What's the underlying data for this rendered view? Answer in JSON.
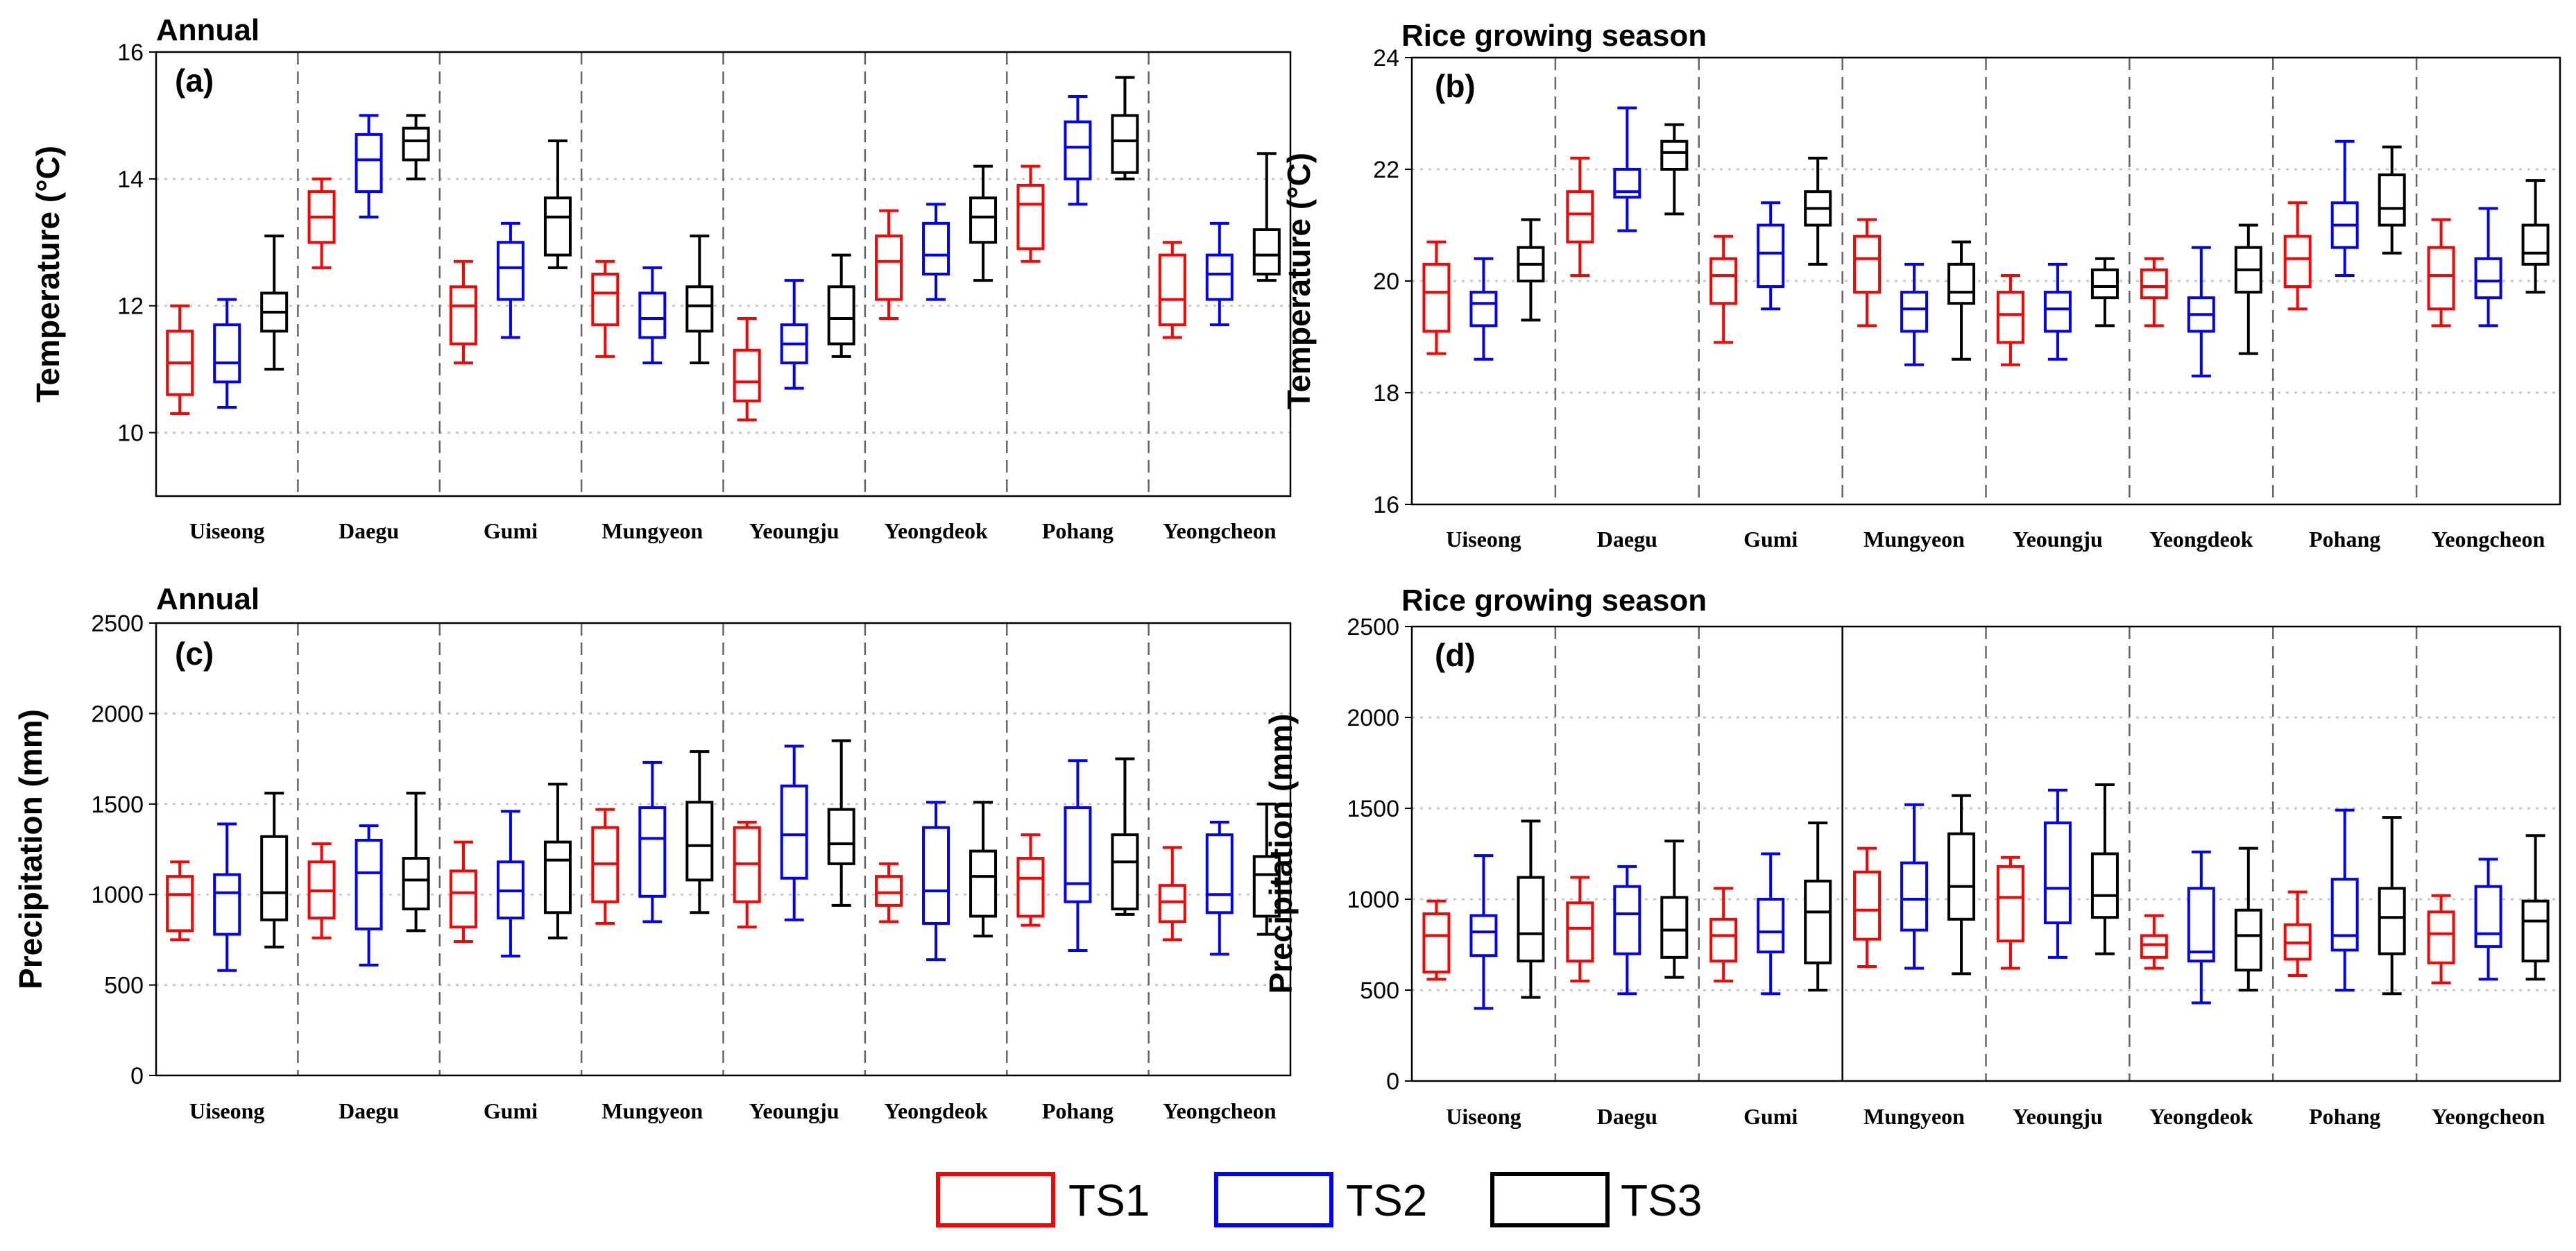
{
  "legend": [
    {
      "label": "TS1",
      "color": "#ff0000"
    },
    {
      "label": "TS2",
      "color": "#0000ff"
    },
    {
      "label": "TS3",
      "color": "#000000"
    }
  ],
  "chart_data": [
    {
      "type": "box",
      "panel": "(a)",
      "title": "Annual",
      "ylabel": "Temperature (°C)",
      "ylim": [
        9,
        16
      ],
      "yticks": [
        10,
        12,
        14,
        16
      ],
      "categories": [
        "Uiseong",
        "Daegu",
        "Gumi",
        "Mungyeon",
        "Yeoungju",
        "Yeongdeok",
        "Pohang",
        "Yeongcheon"
      ],
      "series": [
        {
          "name": "TS1",
          "boxes": [
            [
              10.3,
              10.6,
              11.1,
              11.6,
              12.0
            ],
            [
              12.6,
              13.0,
              13.4,
              13.8,
              14.0
            ],
            [
              11.1,
              11.4,
              12.0,
              12.3,
              12.7
            ],
            [
              11.2,
              11.7,
              12.2,
              12.5,
              12.7
            ],
            [
              10.2,
              10.5,
              10.8,
              11.3,
              11.8
            ],
            [
              11.8,
              12.1,
              12.7,
              13.1,
              13.5
            ],
            [
              12.7,
              12.9,
              13.6,
              13.9,
              14.2
            ],
            [
              11.5,
              11.7,
              12.1,
              12.8,
              13.0
            ]
          ]
        },
        {
          "name": "TS2",
          "boxes": [
            [
              10.4,
              10.8,
              11.1,
              11.7,
              12.1
            ],
            [
              13.4,
              13.8,
              14.3,
              14.7,
              15.0
            ],
            [
              11.5,
              12.1,
              12.6,
              13.0,
              13.3
            ],
            [
              11.1,
              11.5,
              11.8,
              12.2,
              12.6
            ],
            [
              10.7,
              11.1,
              11.4,
              11.7,
              12.4
            ],
            [
              12.1,
              12.5,
              12.8,
              13.3,
              13.6
            ],
            [
              13.6,
              14.0,
              14.5,
              14.9,
              15.3
            ],
            [
              11.7,
              12.1,
              12.5,
              12.8,
              13.3
            ]
          ]
        },
        {
          "name": "TS3",
          "boxes": [
            [
              11.0,
              11.6,
              11.9,
              12.2,
              13.1
            ],
            [
              14.0,
              14.3,
              14.6,
              14.8,
              15.0
            ],
            [
              12.6,
              12.8,
              13.4,
              13.7,
              14.6
            ],
            [
              11.1,
              11.6,
              12.0,
              12.3,
              13.1
            ],
            [
              11.2,
              11.4,
              11.8,
              12.3,
              12.8
            ],
            [
              12.4,
              13.0,
              13.4,
              13.7,
              14.2
            ],
            [
              14.0,
              14.1,
              14.6,
              15.0,
              15.6
            ],
            [
              12.4,
              12.5,
              12.8,
              13.2,
              14.4
            ]
          ]
        }
      ]
    },
    {
      "type": "box",
      "panel": "(b)",
      "title": "Rice growing season",
      "ylabel": "Temperature (°C)",
      "ylim": [
        16,
        24
      ],
      "yticks": [
        16,
        18,
        20,
        22,
        24
      ],
      "categories": [
        "Uiseong",
        "Daegu",
        "Gumi",
        "Mungyeon",
        "Yeoungju",
        "Yeongdeok",
        "Pohang",
        "Yeongcheon"
      ],
      "series": [
        {
          "name": "TS1",
          "boxes": [
            [
              18.7,
              19.1,
              19.8,
              20.3,
              20.7
            ],
            [
              20.1,
              20.7,
              21.2,
              21.6,
              22.2
            ],
            [
              18.9,
              19.6,
              20.1,
              20.4,
              20.8
            ],
            [
              19.2,
              19.8,
              20.4,
              20.8,
              21.1
            ],
            [
              18.5,
              18.9,
              19.4,
              19.8,
              20.1
            ],
            [
              19.2,
              19.7,
              19.9,
              20.2,
              20.4
            ],
            [
              19.5,
              19.9,
              20.4,
              20.8,
              21.4
            ],
            [
              19.2,
              19.5,
              20.1,
              20.6,
              21.1
            ]
          ]
        },
        {
          "name": "TS2",
          "boxes": [
            [
              18.6,
              19.2,
              19.6,
              19.8,
              20.4
            ],
            [
              20.9,
              21.5,
              21.6,
              22.0,
              23.1
            ],
            [
              19.5,
              19.9,
              20.5,
              21.0,
              21.4
            ],
            [
              18.5,
              19.1,
              19.5,
              19.8,
              20.3
            ],
            [
              18.6,
              19.1,
              19.5,
              19.8,
              20.3
            ],
            [
              18.3,
              19.1,
              19.4,
              19.7,
              20.6
            ],
            [
              20.1,
              20.6,
              21.0,
              21.4,
              22.5
            ],
            [
              19.2,
              19.7,
              20.0,
              20.4,
              21.3
            ]
          ]
        },
        {
          "name": "TS3",
          "boxes": [
            [
              19.3,
              20.0,
              20.3,
              20.6,
              21.1
            ],
            [
              21.2,
              22.0,
              22.3,
              22.5,
              22.8
            ],
            [
              20.3,
              21.0,
              21.3,
              21.6,
              22.2
            ],
            [
              18.6,
              19.6,
              19.8,
              20.3,
              20.7
            ],
            [
              19.2,
              19.7,
              19.9,
              20.2,
              20.4
            ],
            [
              18.7,
              19.8,
              20.2,
              20.6,
              21.0
            ],
            [
              20.5,
              21.0,
              21.3,
              21.9,
              22.4
            ],
            [
              19.8,
              20.3,
              20.5,
              21.0,
              21.8
            ]
          ]
        }
      ]
    },
    {
      "type": "box",
      "panel": "(c)",
      "title": "Annual",
      "ylabel": "Precipitation (mm)",
      "ylim": [
        0,
        2500
      ],
      "yticks": [
        0,
        500,
        1000,
        1500,
        2000,
        2500
      ],
      "categories": [
        "Uiseong",
        "Daegu",
        "Gumi",
        "Mungyeon",
        "Yeoungju",
        "Yeongdeok",
        "Pohang",
        "Yeongcheon"
      ],
      "series": [
        {
          "name": "TS1",
          "boxes": [
            [
              750,
              800,
              1000,
              1100,
              1180
            ],
            [
              760,
              870,
              1020,
              1180,
              1280
            ],
            [
              740,
              820,
              1010,
              1130,
              1290
            ],
            [
              840,
              960,
              1170,
              1370,
              1470
            ],
            [
              820,
              960,
              1170,
              1370,
              1400
            ],
            [
              850,
              940,
              1010,
              1100,
              1170
            ],
            [
              830,
              880,
              1090,
              1200,
              1330
            ],
            [
              750,
              850,
              960,
              1050,
              1260
            ]
          ]
        },
        {
          "name": "TS2",
          "boxes": [
            [
              580,
              780,
              1010,
              1110,
              1390
            ],
            [
              610,
              810,
              1120,
              1300,
              1380
            ],
            [
              660,
              870,
              1020,
              1180,
              1460
            ],
            [
              850,
              990,
              1310,
              1480,
              1730
            ],
            [
              860,
              1090,
              1330,
              1600,
              1820
            ],
            [
              640,
              840,
              1020,
              1370,
              1510
            ],
            [
              690,
              960,
              1060,
              1480,
              1740
            ],
            [
              670,
              900,
              1000,
              1330,
              1400
            ]
          ]
        },
        {
          "name": "TS3",
          "boxes": [
            [
              710,
              860,
              1010,
              1320,
              1560
            ],
            [
              800,
              920,
              1080,
              1200,
              1560
            ],
            [
              760,
              900,
              1190,
              1290,
              1610
            ],
            [
              900,
              1080,
              1270,
              1510,
              1790
            ],
            [
              940,
              1170,
              1280,
              1470,
              1850
            ],
            [
              770,
              880,
              1100,
              1240,
              1510
            ],
            [
              890,
              920,
              1180,
              1330,
              1750
            ],
            [
              780,
              880,
              1110,
              1210,
              1500
            ]
          ]
        }
      ]
    },
    {
      "type": "box",
      "panel": "(d)",
      "title": "Rice growing season",
      "ylabel": "Precipitation (mm)",
      "ylim": [
        0,
        2500
      ],
      "yticks": [
        0,
        500,
        1000,
        1500,
        2000,
        2500
      ],
      "categories": [
        "Uiseong",
        "Daegu",
        "Gumi",
        "Mungyeon",
        "Yeoungju",
        "Yeongdeok",
        "Pohang",
        "Yeongcheon"
      ],
      "series": [
        {
          "name": "TS1",
          "boxes": [
            [
              560,
              600,
              800,
              920,
              990
            ],
            [
              550,
              660,
              840,
              980,
              1120
            ],
            [
              550,
              660,
              800,
              890,
              1060
            ],
            [
              630,
              780,
              940,
              1150,
              1280
            ],
            [
              620,
              770,
              1010,
              1180,
              1230
            ],
            [
              620,
              680,
              750,
              800,
              910
            ],
            [
              580,
              670,
              760,
              860,
              1040
            ],
            [
              540,
              650,
              810,
              930,
              1020
            ]
          ]
        },
        {
          "name": "TS2",
          "boxes": [
            [
              400,
              690,
              820,
              910,
              1240
            ],
            [
              480,
              700,
              920,
              1070,
              1180
            ],
            [
              480,
              710,
              820,
              1000,
              1250
            ],
            [
              620,
              830,
              1000,
              1200,
              1520
            ],
            [
              680,
              870,
              1060,
              1420,
              1600
            ],
            [
              430,
              660,
              710,
              1060,
              1260
            ],
            [
              500,
              720,
              800,
              1110,
              1490
            ],
            [
              560,
              740,
              810,
              1070,
              1220
            ]
          ]
        },
        {
          "name": "TS3",
          "boxes": [
            [
              460,
              660,
              810,
              1120,
              1430
            ],
            [
              570,
              680,
              830,
              1010,
              1320
            ],
            [
              500,
              650,
              930,
              1100,
              1420
            ],
            [
              590,
              890,
              1070,
              1360,
              1570
            ],
            [
              700,
              900,
              1020,
              1250,
              1630
            ],
            [
              500,
              610,
              800,
              940,
              1280
            ],
            [
              480,
              700,
              900,
              1060,
              1450
            ],
            [
              560,
              660,
              880,
              990,
              1350
            ]
          ]
        }
      ]
    }
  ]
}
